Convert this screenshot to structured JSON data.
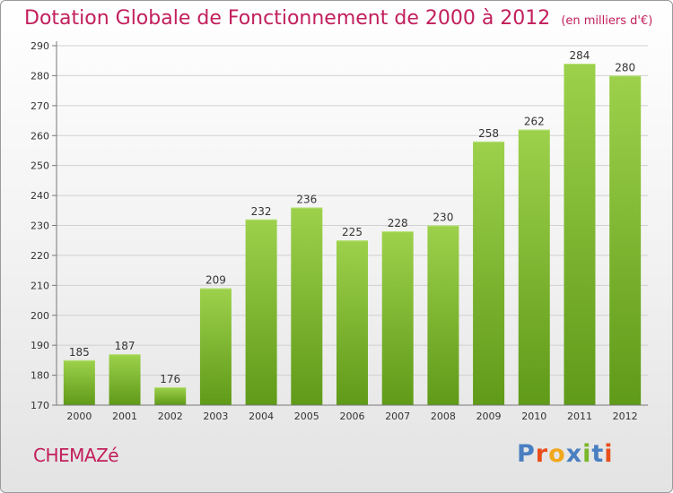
{
  "header": {
    "title": "Dotation Globale de Fonctionnement de 2000 à 2012",
    "unit": "(en milliers d'€)"
  },
  "footer": {
    "commune": "CHEMAZé",
    "logo_text": "Proxiti"
  },
  "colors": {
    "accent": "#c21f5c",
    "bar_light": "#9dd14c",
    "bar_dark": "#5f9a18",
    "logo_letters": [
      "#4a7fc1",
      "#e94e1b",
      "#f2a81d",
      "#4a7fc1",
      "#79b72a",
      "#4a7fc1",
      "#e94e1b"
    ]
  },
  "chart_data": {
    "type": "bar",
    "title": "Dotation Globale de Fonctionnement de 2000 à 2012",
    "subtitle": "(en milliers d'€)",
    "categories": [
      "2000",
      "2001",
      "2002",
      "2003",
      "2004",
      "2005",
      "2006",
      "2007",
      "2008",
      "2009",
      "2010",
      "2011",
      "2012"
    ],
    "values": [
      185,
      187,
      176,
      209,
      232,
      236,
      225,
      228,
      230,
      258,
      262,
      284,
      280
    ],
    "ylim": [
      170,
      290
    ],
    "yticks": [
      170,
      180,
      190,
      200,
      210,
      220,
      230,
      240,
      250,
      260,
      270,
      280,
      290
    ],
    "grid": true,
    "legend": "none"
  }
}
